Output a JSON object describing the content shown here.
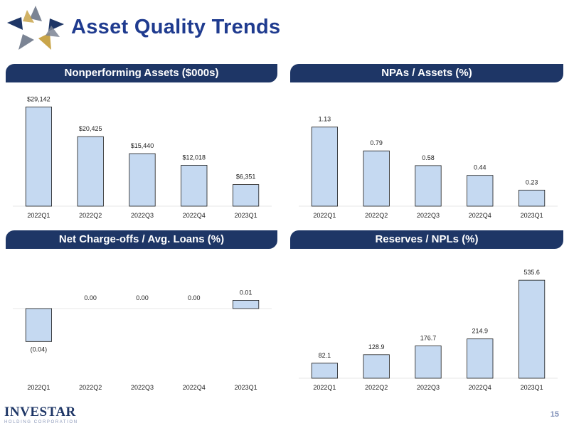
{
  "page": {
    "title": "Asset Quality Trends",
    "page_number": "15",
    "footer": {
      "name": "INVESTAR",
      "tagline": "HOLDING CORPORATION"
    }
  },
  "colors": {
    "header_bg": "#1e3666",
    "title": "#1f3b8f",
    "bar_fill": "#c5d9f1",
    "bar_stroke": "#1a1a1a",
    "logo_gray": "#7b8494",
    "logo_navy": "#1e3666",
    "logo_gold": "#c9a54a"
  },
  "chart_data": [
    {
      "type": "bar",
      "title": "Nonperforming Assets ($000s)",
      "categories": [
        "2022Q1",
        "2022Q2",
        "2022Q3",
        "2022Q4",
        "2023Q1"
      ],
      "values": [
        29142,
        20425,
        15440,
        12018,
        6351
      ],
      "labels": [
        "$29,142",
        "$20,425",
        "$15,440",
        "$12,018",
        "$6,351"
      ],
      "ylim": [
        0,
        33000
      ],
      "xlabel": "",
      "ylabel": ""
    },
    {
      "type": "bar",
      "title": "NPAs / Assets (%)",
      "categories": [
        "2022Q1",
        "2022Q2",
        "2022Q3",
        "2022Q4",
        "2023Q1"
      ],
      "values": [
        1.13,
        0.79,
        0.58,
        0.44,
        0.23
      ],
      "labels": [
        "1.13",
        "0.79",
        "0.58",
        "0.44",
        "0.23"
      ],
      "ylim": [
        0,
        1.3
      ],
      "xlabel": "",
      "ylabel": ""
    },
    {
      "type": "bar",
      "title": "Net Charge-offs / Avg. Loans (%)",
      "categories": [
        "2022Q1",
        "2022Q2",
        "2022Q3",
        "2022Q4",
        "2023Q1"
      ],
      "values": [
        -0.04,
        0.0,
        0.0,
        0.0,
        0.01
      ],
      "labels": [
        "(0.04)",
        "0.00",
        "0.00",
        "0.00",
        "0.01"
      ],
      "ylim": [
        -0.045,
        0.05
      ],
      "xlabel": "",
      "ylabel": ""
    },
    {
      "type": "bar",
      "title": "Reserves / NPLs (%)",
      "categories": [
        "2022Q1",
        "2022Q2",
        "2022Q3",
        "2022Q4",
        "2023Q1"
      ],
      "values": [
        82.1,
        128.9,
        176.7,
        214.9,
        535.6
      ],
      "labels": [
        "82.1",
        "128.9",
        "176.7",
        "214.9",
        "535.6"
      ],
      "ylim": [
        0,
        575
      ],
      "xlabel": "",
      "ylabel": ""
    }
  ]
}
